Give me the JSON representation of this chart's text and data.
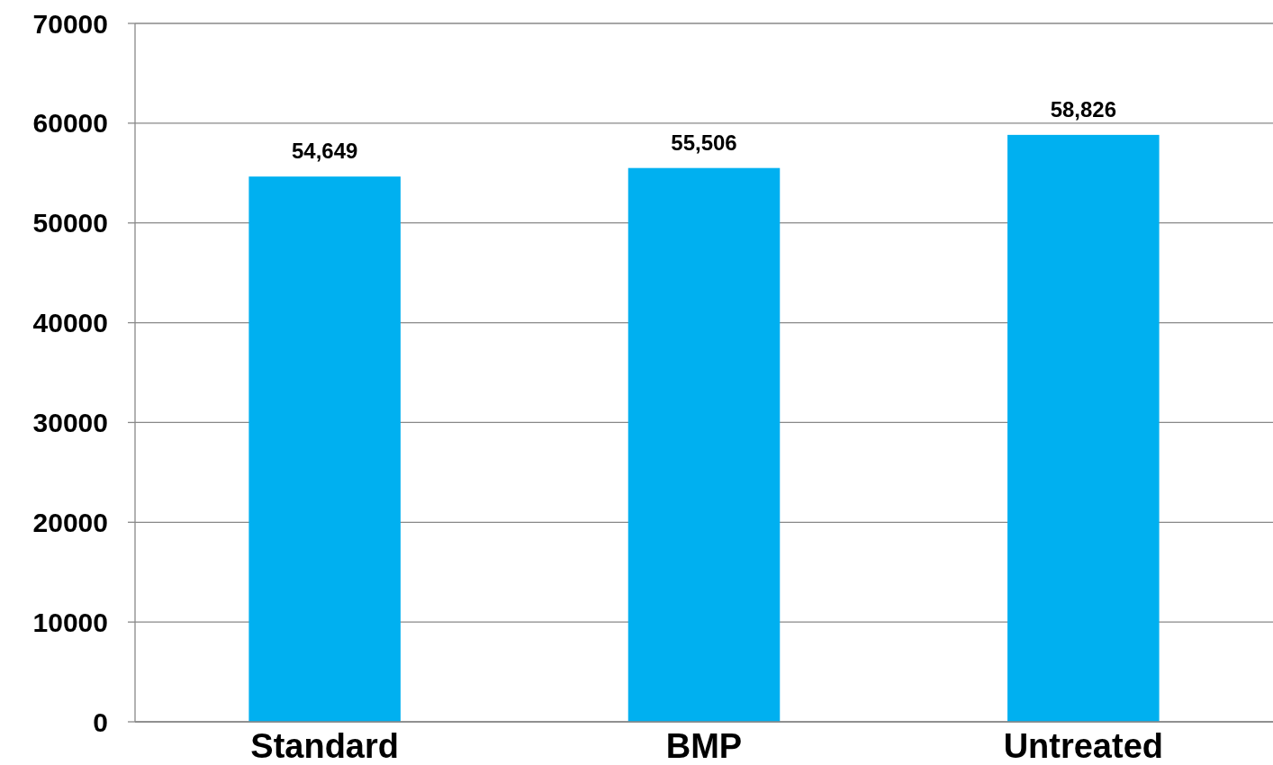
{
  "chart_data": {
    "type": "bar",
    "categories": [
      "Standard",
      "BMP",
      "Untreated"
    ],
    "values": [
      54649,
      55506,
      58826
    ],
    "value_labels": [
      "54,649",
      "55,506",
      "58,826"
    ],
    "color": "#00b0f0",
    "ylim": [
      0,
      70000
    ],
    "yticks": [
      0,
      10000,
      20000,
      30000,
      40000,
      50000,
      60000,
      70000
    ],
    "grid": "y"
  }
}
